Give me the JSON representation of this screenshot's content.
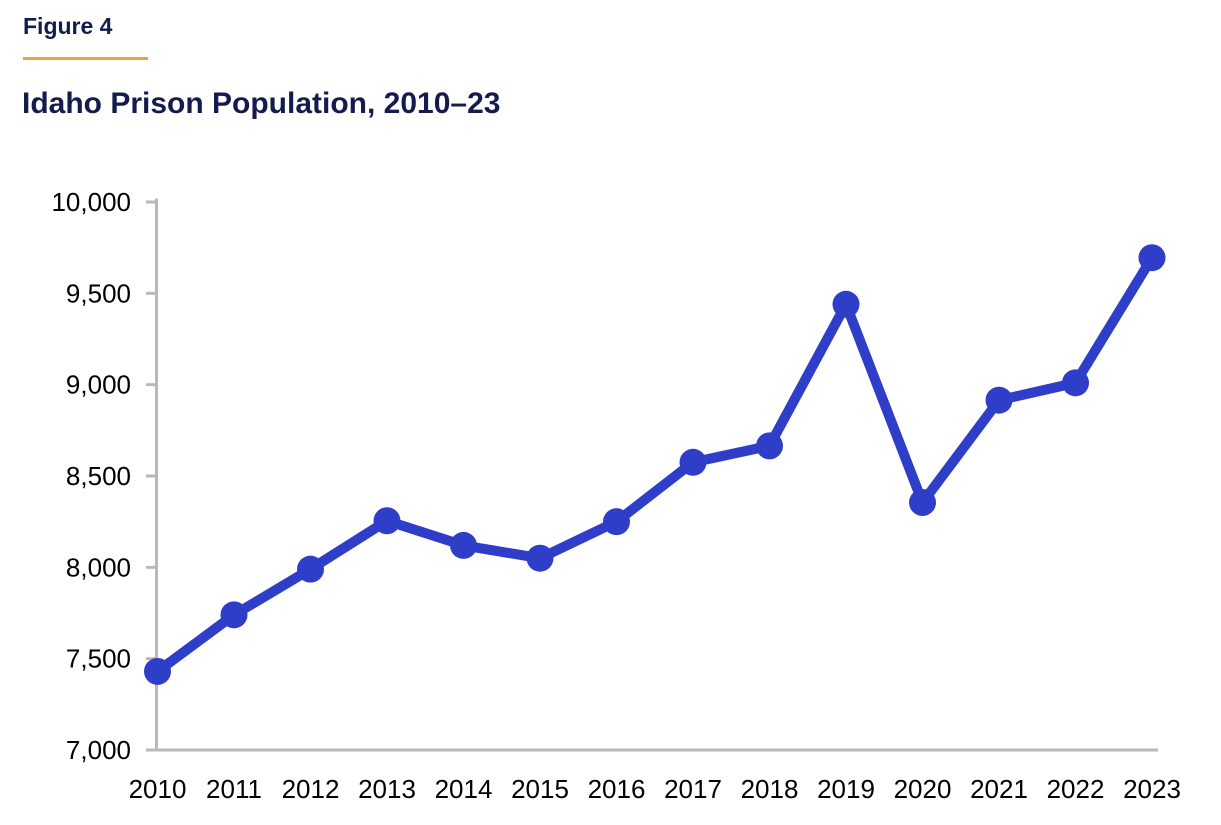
{
  "figure": {
    "label": "Figure 4",
    "title": "Idaho Prison Population, 2010–23"
  },
  "colors": {
    "navy_text": "#141b4d",
    "gold_rule": "#f0a33c",
    "line_blue": "#2e3ec8",
    "axis_gray": "#b9b9b9",
    "tick_label": "#000000"
  },
  "chart_data": {
    "type": "line",
    "title": "Idaho Prison Population, 2010–23",
    "x": [
      2010,
      2011,
      2012,
      2013,
      2014,
      2015,
      2016,
      2017,
      2018,
      2019,
      2020,
      2021,
      2022,
      2023
    ],
    "x_labels": [
      "2010",
      "2011",
      "2012",
      "2013",
      "2014",
      "2015",
      "2016",
      "2017",
      "2018",
      "2019",
      "2020",
      "2021",
      "2022",
      "2023"
    ],
    "series": [
      {
        "name": "Idaho prison population",
        "values": [
          7430,
          7740,
          7990,
          8255,
          8120,
          8050,
          8250,
          8575,
          8665,
          9440,
          8355,
          8915,
          9010,
          9695
        ]
      }
    ],
    "xlabel": "",
    "ylabel": "",
    "ylim": [
      7000,
      10000
    ],
    "yticks": [
      10000,
      9500,
      9000,
      8500,
      8000,
      7500,
      7000
    ],
    "ytick_labels": [
      "10,000",
      "9,500",
      "9,000",
      "8,500",
      "8,000",
      "7,500",
      "7,000"
    ],
    "grid": false,
    "legend": false,
    "marker": "circle",
    "line_color": "#2e3ec8",
    "marker_color": "#2e3ec8"
  }
}
